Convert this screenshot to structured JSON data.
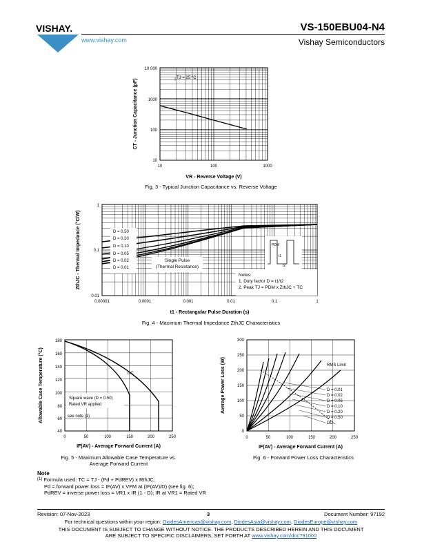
{
  "header": {
    "brand": "VISHAY.",
    "url": "www.vishay.com",
    "part_number": "VS-150EBU04-N4",
    "company": "Vishay Semiconductors"
  },
  "fig3": {
    "caption": "Fig. 3 - Typical Junction Capacitance vs. Reverse Voltage",
    "ylabel": "CT - Junction Capacitance (pF)",
    "xlabel": "VR - Reverse Voltage (V)",
    "yticks": [
      "10 000",
      "1000",
      "100",
      "10"
    ],
    "xticks": [
      "10",
      "100",
      "1000"
    ],
    "annotation": "TJ = 25 °C"
  },
  "fig4": {
    "caption": "Fig. 4 - Maximum Thermal Impedance ZthJC Characteristics",
    "ylabel": "ZthJC - Thermal Impedance (°C/W)",
    "xlabel": "t1 - Rectangular Pulse Duration (s)",
    "yticks": [
      "1",
      "0.1",
      "0.01"
    ],
    "xticks": [
      "0.00001",
      "0.0001",
      "0.001",
      "0.01",
      "0.1",
      "1"
    ],
    "legend": [
      "D = 0.50",
      "D = 0.20",
      "D = 0.10",
      "D = 0.05",
      "D = 0.02",
      "D = 0.01"
    ],
    "single_pulse": "Single Pulse",
    "thermal_resistance": "(Thermal Resistance)",
    "notes_title": "Notes:",
    "note1": "1. Duty factor D = t1/t2",
    "note2": "2. Peak TJ = PDM x ZthJC + TC",
    "pdm": "PDM",
    "t1": "t1",
    "t2": "t2"
  },
  "fig5": {
    "caption_line1": "Fig. 5 - Maximum Allowable Case Temperature vs.",
    "caption_line2": "Average Forward Current",
    "ylabel": "Allowable Case Temperature (°C)",
    "xlabel": "IF(AV) - Average Forward Current (A)",
    "yticks": [
      "180",
      "160",
      "140",
      "120",
      "100",
      "80",
      "60",
      "40"
    ],
    "xticks": [
      "0",
      "50",
      "100",
      "150",
      "200",
      "250"
    ],
    "dc_label": "DC",
    "legend1": "Square wave (D = 0.50)",
    "legend2": "Rated VR applied",
    "see_note": "see note (1)"
  },
  "fig6": {
    "caption": "Fig. 6 - Forward Power Loss Characteristics",
    "ylabel": "Average Power Loss (W)",
    "xlabel": "IF(AV) - Average Forward Current (A)",
    "yticks": [
      "300",
      "250",
      "200",
      "150",
      "100",
      "50",
      "0"
    ],
    "xticks": [
      "0",
      "50",
      "100",
      "150",
      "200",
      "250"
    ],
    "rms_label": "RMS Limit",
    "legend": [
      "D = 0.01",
      "D = 0.02",
      "D = 0.05",
      "D = 0.10",
      "D = 0.20",
      "D = 0.50",
      "DC"
    ]
  },
  "notes": {
    "title": "Note",
    "marker": "(1)",
    "line1": "Formula used: TC = TJ - (Pd + PdREV) x RthJC;",
    "line2": "Pd = forward power loss = IF(AV) x VFM at (IF(AV)/D) (see fig. 6);",
    "line3": "PdREV = inverse power loss = VR1 x IR (1 - D); IR at VR1 = Rated VR"
  },
  "footer": {
    "revision": "Revision: 07-Nov-2023",
    "page": "3",
    "doc_number": "Document Number: 97192",
    "support_prefix": "For technical questions within your region:",
    "email1": "DiodesAmericas@vishay.com",
    "email2": "DiodesAsia@vishay.com",
    "email3": "DiodesEurope@vishay.com",
    "disclaimer1": "THIS DOCUMENT IS SUBJECT TO CHANGE WITHOUT NOTICE. THE PRODUCTS DESCRIBED HEREIN AND THIS DOCUMENT",
    "disclaimer2": "ARE SUBJECT TO SPECIFIC DISCLAIMERS, SET FORTH AT",
    "disclaimer_link": "www.vishay.com/doc?91000"
  },
  "colors": {
    "link": "#1f5fb0",
    "logo": "#3a8fc7"
  }
}
